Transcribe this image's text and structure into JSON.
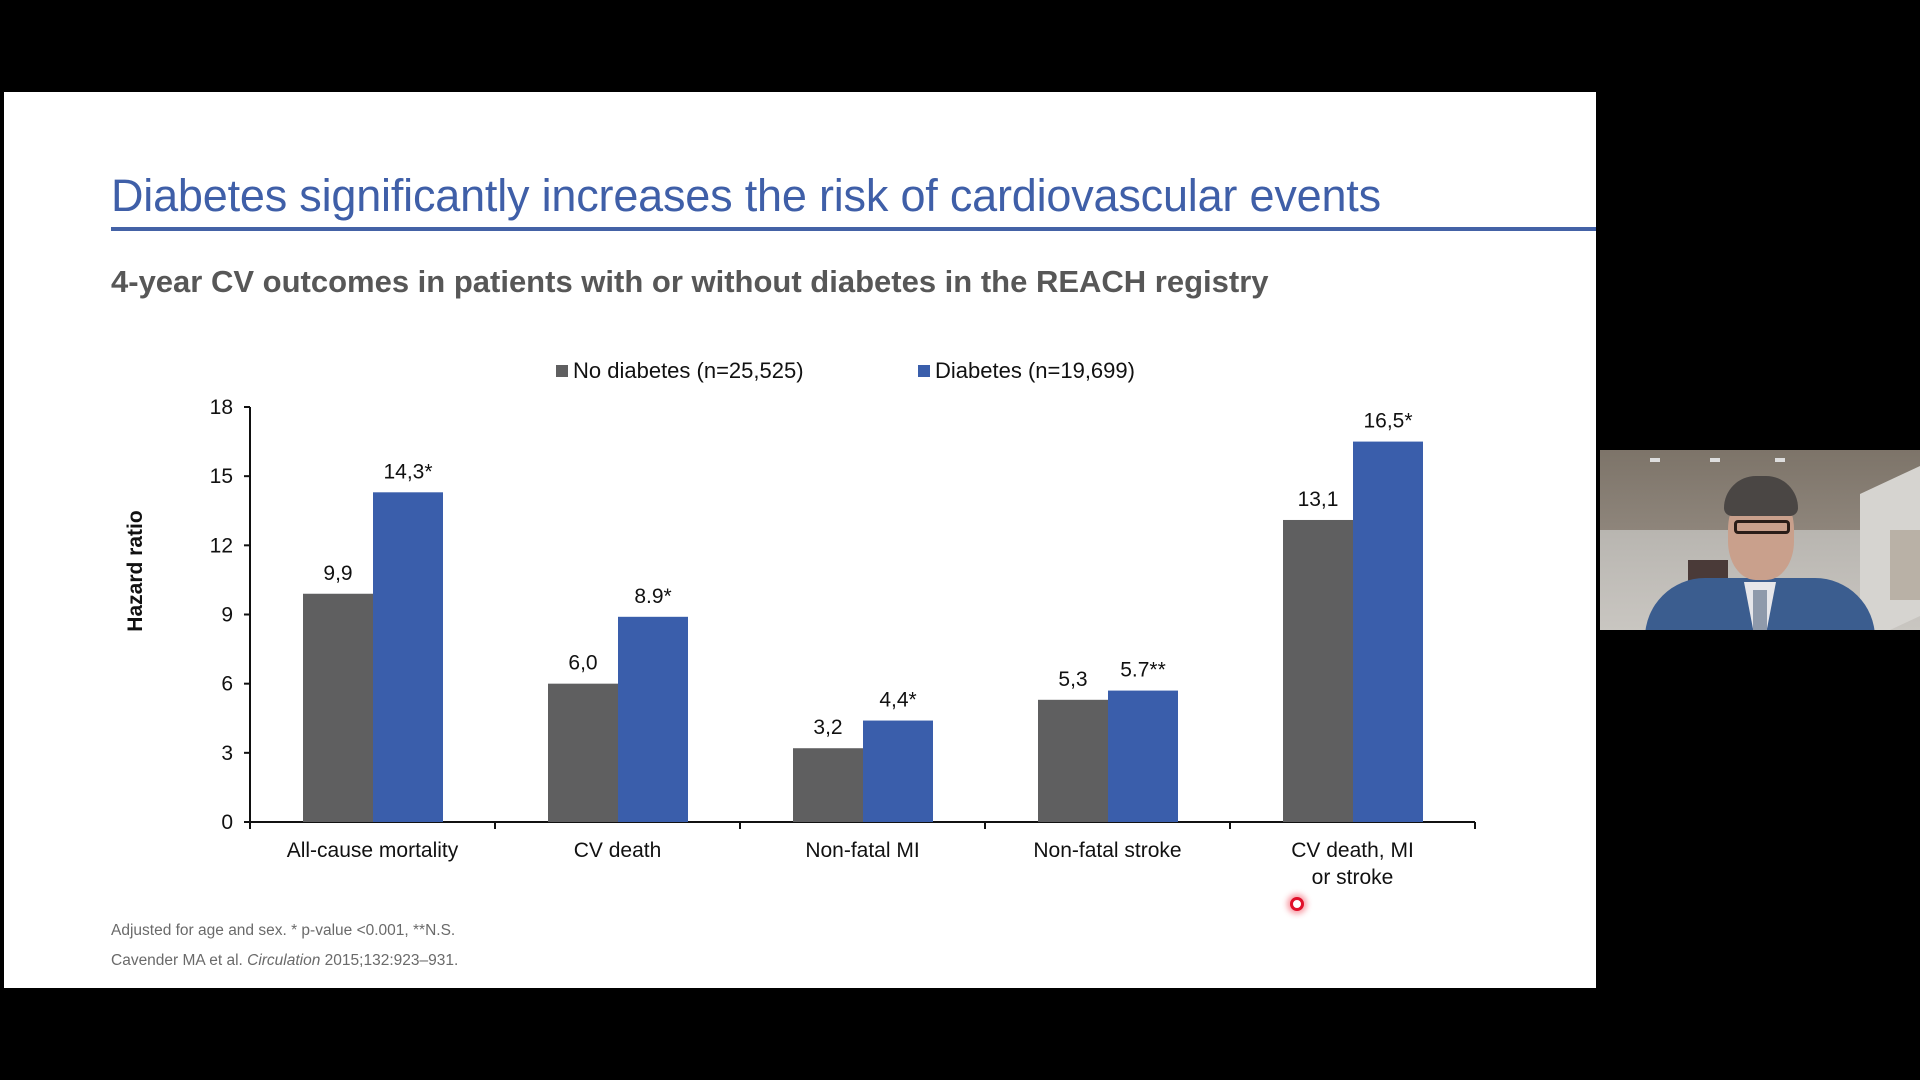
{
  "slide": {
    "title": "Diabetes significantly increases the risk of cardiovascular events",
    "subtitle": "4-year CV outcomes in patients with or without diabetes in the REACH registry",
    "footnotes": {
      "line1": "Adjusted for age and sex. * p-value <0.001, **N.S.",
      "line2_prefix": "Cavender MA et al. ",
      "line2_journal": "Circulation",
      "line2_suffix": " 2015;132:923–931."
    },
    "colors": {
      "title": "#3f5fa8",
      "no_diabetes": "#5f5f60",
      "diabetes": "#3a5eab"
    }
  },
  "chart_data": {
    "type": "bar",
    "title": "4-year CV outcomes in patients with or without diabetes in the REACH registry",
    "xlabel": "",
    "ylabel": "Hazard ratio",
    "ylim": [
      0,
      18
    ],
    "yticks": [
      0,
      3,
      6,
      9,
      12,
      15,
      18
    ],
    "grid": false,
    "legend_position": "top-center",
    "categories": [
      [
        "All-cause mortality"
      ],
      [
        "CV death"
      ],
      [
        "Non-fatal MI"
      ],
      [
        "Non-fatal stroke"
      ],
      [
        "CV death, MI",
        "or stroke"
      ]
    ],
    "series": [
      {
        "name": "No diabetes (n=25,525)",
        "color": "#5f5f60",
        "values": [
          9.9,
          6.0,
          3.2,
          5.3,
          13.1
        ],
        "labels": [
          "9,9",
          "6,0",
          "3,2",
          "5,3",
          "13,1"
        ]
      },
      {
        "name": "Diabetes (n=19,699)",
        "color": "#3a5eab",
        "values": [
          14.3,
          8.9,
          4.4,
          5.7,
          16.5
        ],
        "labels": [
          "14,3*",
          "8.9*",
          "4,4*",
          "5.7**",
          "16,5*"
        ]
      }
    ]
  },
  "webcam": {
    "label": "presenter-video"
  }
}
